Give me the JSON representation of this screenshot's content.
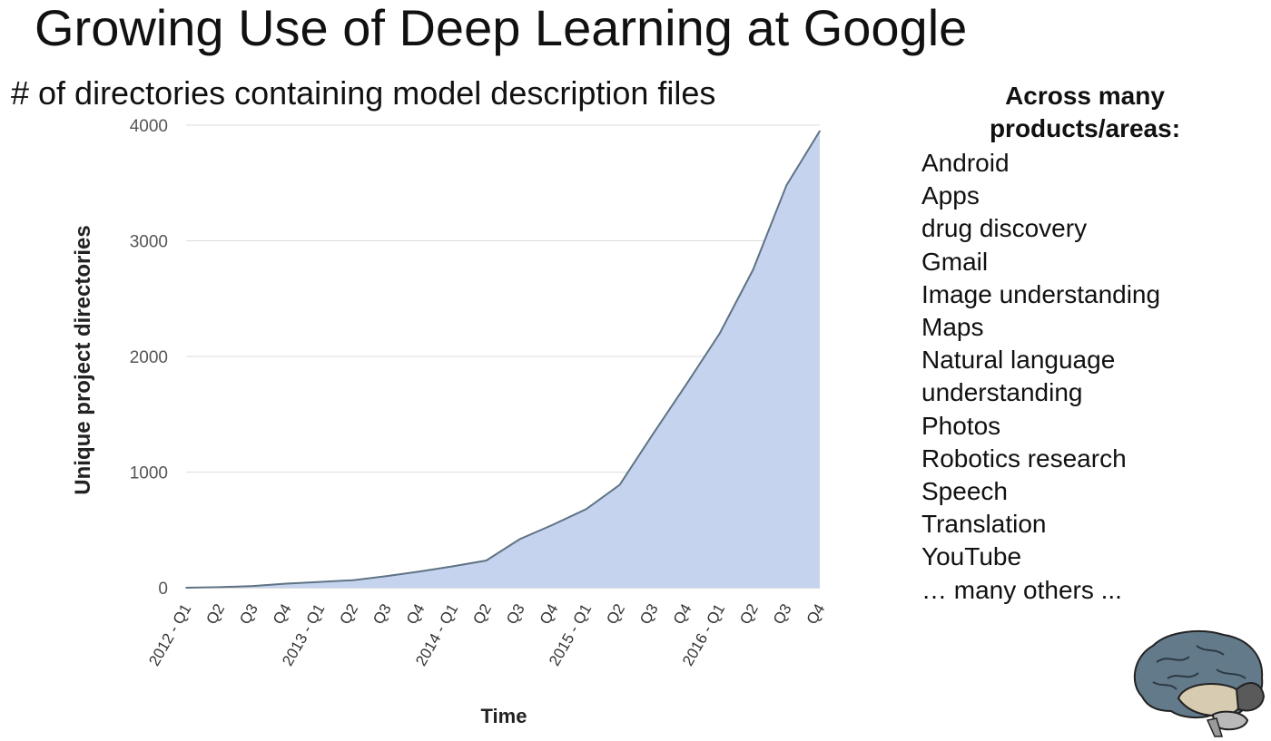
{
  "slide": {
    "title": "Growing Use of Deep Learning at Google"
  },
  "sidebar": {
    "heading_line1": "Across many",
    "heading_line2": "products/areas:",
    "items": [
      "Android",
      "Apps",
      "drug discovery",
      "Gmail",
      "Image understanding",
      "Maps",
      "Natural language",
      "understanding",
      "Photos",
      "Robotics research",
      "Speech",
      "Translation",
      "YouTube",
      "… many others ..."
    ]
  },
  "chart_data": {
    "type": "area",
    "title": "# of directories containing model description files",
    "xlabel": "Time",
    "ylabel": "Unique project directories",
    "categories": [
      "2012 - Q1",
      "Q2",
      "Q3",
      "Q4",
      "2013 - Q1",
      "Q2",
      "Q3",
      "Q4",
      "2014 - Q1",
      "Q2",
      "Q3",
      "Q4",
      "2015 - Q1",
      "Q2",
      "Q3",
      "Q4",
      "2016 - Q1",
      "Q2",
      "Q3",
      "Q4"
    ],
    "series": [
      {
        "values": [
          0,
          5,
          15,
          35,
          50,
          65,
          100,
          140,
          185,
          235,
          420,
          545,
          680,
          890,
          1330,
          1760,
          2200,
          2750,
          3480,
          3950
        ]
      }
    ],
    "ylim": [
      0,
      4000
    ],
    "yticks": [
      0,
      1000,
      2000,
      3000,
      4000
    ],
    "grid": true,
    "legend": "none",
    "colors": {
      "area_fill": "#c5d3ef",
      "line": "#5f7384",
      "grid": "#dddddd",
      "tick_label": "#555555"
    }
  },
  "brain_icon": "brain-icon"
}
